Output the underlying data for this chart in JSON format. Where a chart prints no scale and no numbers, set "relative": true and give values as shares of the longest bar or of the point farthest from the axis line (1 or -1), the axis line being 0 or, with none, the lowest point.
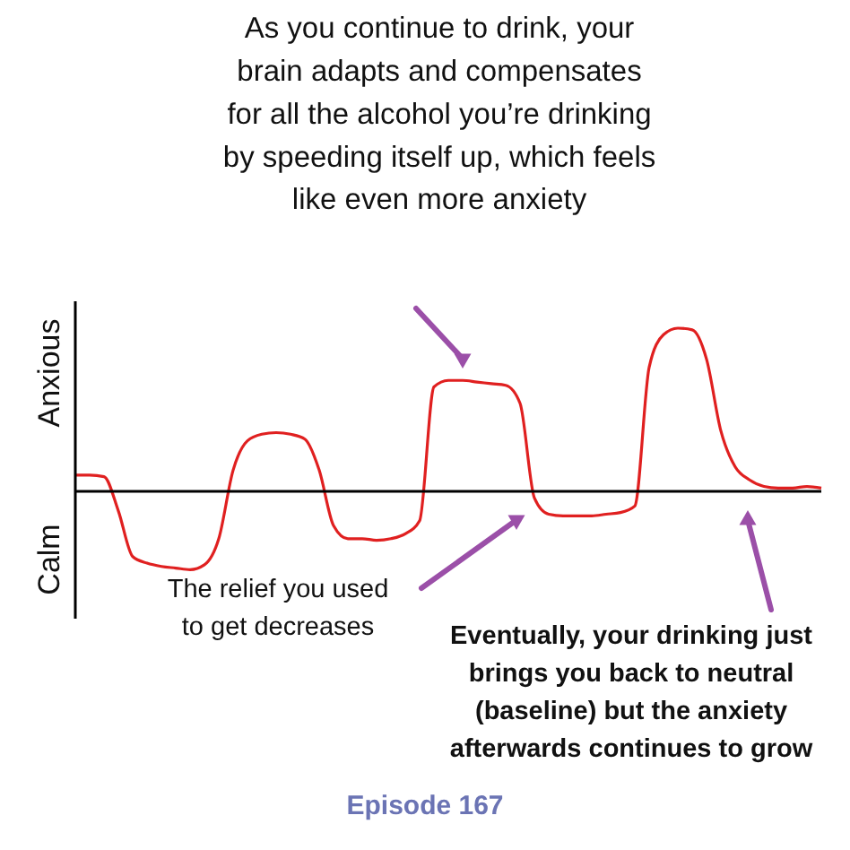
{
  "chart_data": {
    "type": "line",
    "relative": true,
    "color": "#e02020",
    "title": "As you continue to drink, your\nbrain adapts and compensates\nfor all the alcohol you’re drinking\nby speeding itself up, which feels\nlike even more anxiety",
    "categories": [
      null,
      null,
      null,
      null,
      null,
      null,
      null,
      null,
      null,
      null,
      null,
      null,
      null,
      null,
      null,
      null,
      null,
      null,
      null,
      null,
      null,
      null,
      null,
      null,
      null,
      null,
      null,
      null,
      null,
      null,
      null,
      null,
      null,
      null,
      null,
      null,
      null,
      null,
      null,
      null,
      null,
      null,
      null,
      null,
      null,
      null,
      null,
      null,
      null,
      null,
      null,
      null,
      null
    ],
    "values": [
      0.1,
      0.1,
      0.09,
      -0.12,
      -0.4,
      -0.44,
      -0.46,
      -0.47,
      -0.48,
      -0.45,
      -0.29,
      0.13,
      0.31,
      0.35,
      0.36,
      0.35,
      0.32,
      0.13,
      -0.21,
      -0.29,
      -0.29,
      -0.3,
      -0.29,
      -0.26,
      -0.18,
      0.64,
      0.68,
      0.68,
      0.67,
      0.66,
      0.65,
      0.54,
      -0.04,
      -0.14,
      -0.15,
      -0.15,
      -0.15,
      -0.14,
      -0.13,
      -0.09,
      0.76,
      0.96,
      1.0,
      0.99,
      0.81,
      0.37,
      0.15,
      0.07,
      0.03,
      0.02,
      0.02,
      0.03,
      0.02
    ],
    "annotations": [
      "Anxious",
      "Calm",
      "The relief you used\nto get decreases",
      "Eventually, your drinking just\nbrings you back to neutral\n(baseline) but the anxiety\nafterwards continues to grow",
      "Episode 167"
    ]
  }
}
